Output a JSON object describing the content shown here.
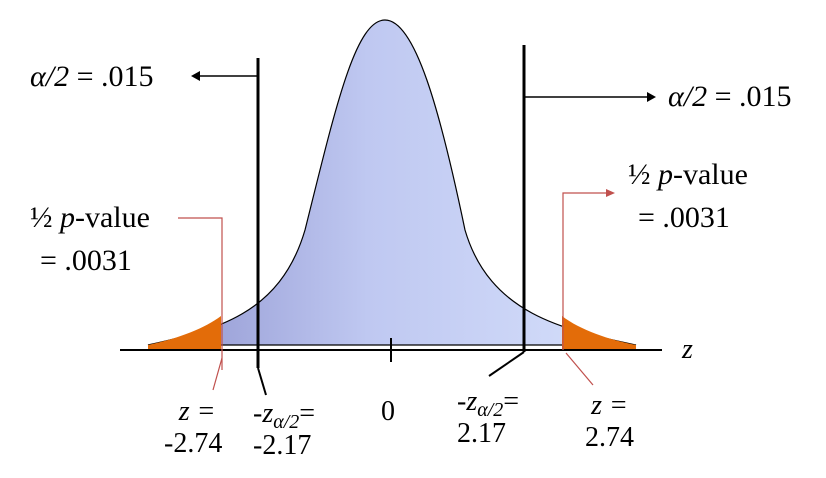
{
  "diagram": {
    "colors": {
      "curve_fill_light": "#d6e0fb",
      "curve_fill_dark": "#8f94cf",
      "tail_fill": "#e36c09",
      "pointer_line": "#c0504d",
      "line": "#000000"
    },
    "left_alpha": {
      "symbol": "α/2",
      "eq": "= .015"
    },
    "right_alpha": {
      "symbol": "α/2",
      "eq": "= .015"
    },
    "left_pvalue": {
      "half": "½",
      "p": "p",
      "text": "-value",
      "eq": "= .0031"
    },
    "right_pvalue": {
      "half": "½",
      "p": "p",
      "text": "-value",
      "eq": "= .0031"
    },
    "axis_label": "z",
    "tick_labels": {
      "z_left": {
        "name": "z =",
        "value": "-2.74"
      },
      "crit_left": {
        "prefix": "-z",
        "sub": "α/2",
        "suffix": "=",
        "value": "-2.17"
      },
      "zero": "0",
      "crit_right": {
        "prefix": "-z",
        "sub": "α/2",
        "suffix": "=",
        "value": "2.17"
      },
      "z_right": {
        "name": "z =",
        "value": "2.74"
      }
    }
  }
}
